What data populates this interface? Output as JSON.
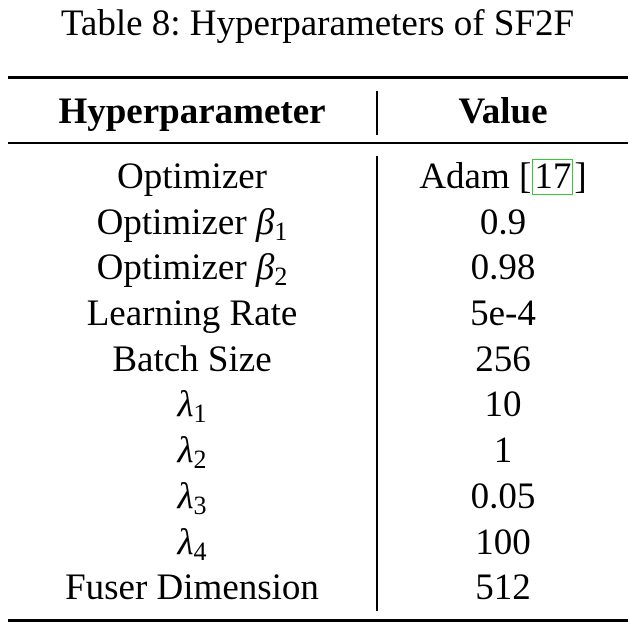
{
  "caption": "Table 8: Hyperparameters of SF2F",
  "table": {
    "headers": {
      "col1": "Hyperparameter",
      "col2": "Value"
    },
    "rows": [
      {
        "name": "Optimizer",
        "value": "Adam [17]"
      },
      {
        "name": "Optimizer β1",
        "value": "0.9"
      },
      {
        "name": "Optimizer β2",
        "value": "0.98"
      },
      {
        "name": "Learning Rate",
        "value": "5e-4"
      },
      {
        "name": "Batch Size",
        "value": "256"
      },
      {
        "name": "λ1",
        "value": "10"
      },
      {
        "name": "λ2",
        "value": "1"
      },
      {
        "name": "λ3",
        "value": "0.05"
      },
      {
        "name": "λ4",
        "value": "100"
      },
      {
        "name": "Fuser Dimension",
        "value": "512"
      }
    ]
  },
  "citation_box_color": "#33cc33"
}
